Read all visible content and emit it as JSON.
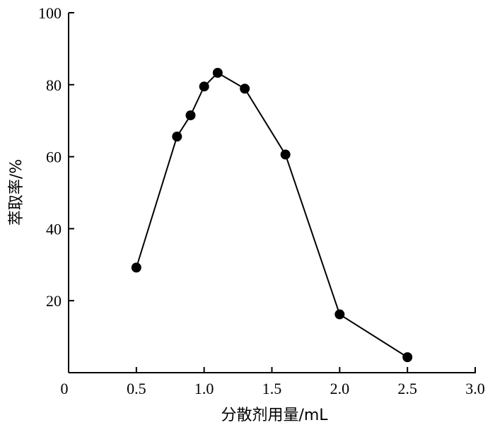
{
  "chart_data": {
    "type": "line",
    "xlabel": "分散剂用量/mL",
    "ylabel": "萃取率/%",
    "xlim": [
      0,
      3.0
    ],
    "ylim": [
      0,
      100
    ],
    "x_ticks": [
      0,
      0.5,
      1.0,
      1.5,
      2.0,
      2.5,
      3.0
    ],
    "x_tick_labels": [
      "0",
      "0.5",
      "1.0",
      "1.5",
      "2.0",
      "2.5",
      "3.0"
    ],
    "y_ticks": [
      20,
      40,
      60,
      80,
      100
    ],
    "y_tick_labels": [
      "20",
      "40",
      "60",
      "80",
      "100"
    ],
    "grid": false,
    "legend": "none",
    "series": [
      {
        "x": [
          0.5,
          0.8,
          0.9,
          1.0,
          1.1,
          1.3,
          1.6,
          2.0,
          2.5
        ],
        "y": [
          29.2,
          65.6,
          71.5,
          79.5,
          83.3,
          78.9,
          60.6,
          16.2,
          4.3
        ]
      }
    ]
  }
}
